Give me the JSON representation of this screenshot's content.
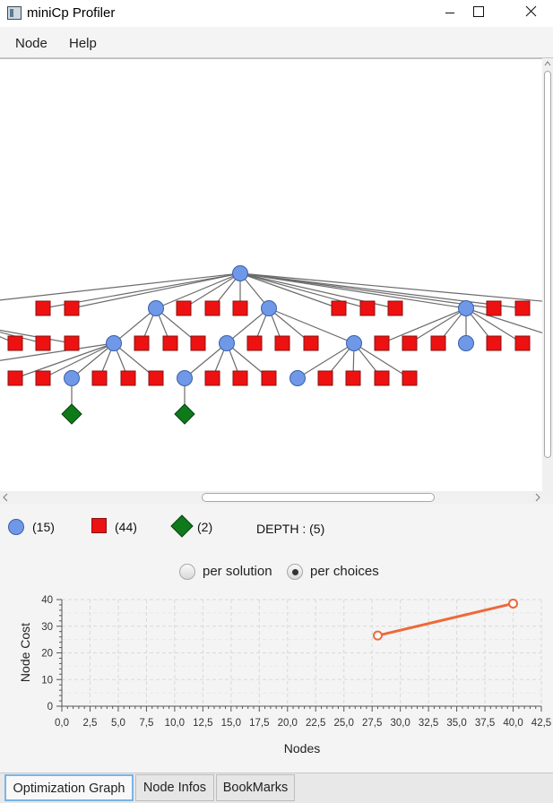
{
  "window": {
    "title": "miniCp Profiler"
  },
  "menu": {
    "items": [
      {
        "label": "Node"
      },
      {
        "label": "Help"
      }
    ]
  },
  "colors": {
    "choice_node": "#6f98e8",
    "fail_node": "#ee1111",
    "solution_node": "#0f7a1a",
    "series_line": "#ec6a3a"
  },
  "legend": {
    "circle_count": "(15)",
    "square_count": "(44)",
    "diamond_count": "(2)",
    "depth": "DEPTH : (5)"
  },
  "mode": {
    "options": [
      {
        "label": "per solution",
        "selected": false
      },
      {
        "label": "per choices",
        "selected": true
      }
    ]
  },
  "chart_data": {
    "type": "line",
    "title": "",
    "xlabel": "Nodes",
    "ylabel": "Node Cost",
    "xlim": [
      0,
      42.5
    ],
    "ylim": [
      0,
      40
    ],
    "x_tick_labels": [
      "0,0",
      "2,5",
      "5,0",
      "7,5",
      "10,0",
      "12,5",
      "15,0",
      "17,5",
      "20,0",
      "22,5",
      "25,0",
      "27,5",
      "30,0",
      "32,5",
      "35,0",
      "37,5",
      "40,0",
      "42,5"
    ],
    "y_tick_labels": [
      "0",
      "10",
      "20",
      "30",
      "40"
    ],
    "grid": true,
    "series": [
      {
        "x": [
          28,
          40
        ],
        "y": [
          26.5,
          38.5
        ]
      }
    ]
  },
  "tabs": [
    {
      "label": "Optimization Graph",
      "active": true
    },
    {
      "label": "Node Infos",
      "active": false
    },
    {
      "label": "BookMarks",
      "active": false
    }
  ]
}
